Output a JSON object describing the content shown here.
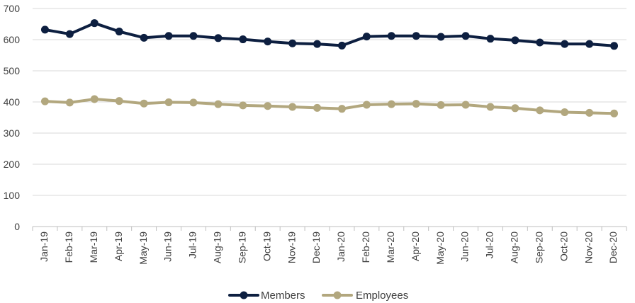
{
  "chart_data": {
    "type": "line",
    "title": "",
    "xlabel": "",
    "ylabel": "",
    "ylim": [
      0,
      700
    ],
    "yticks": [
      0,
      100,
      200,
      300,
      400,
      500,
      600,
      700
    ],
    "grid": "horizontal",
    "legend": "bottom-center",
    "categories": [
      "Jan-19",
      "Feb-19",
      "Mar-19",
      "Apr-19",
      "May-19",
      "Jun-19",
      "Jul-19",
      "Aug-19",
      "Sep-19",
      "Oct-19",
      "Nov-19",
      "Dec-19",
      "Jan-20",
      "Feb-20",
      "Mar-20",
      "Apr-20",
      "May-20",
      "Jun-20",
      "Jul-20",
      "Aug-20",
      "Sep-20",
      "Oct-20",
      "Nov-20",
      "Dec-20"
    ],
    "series": [
      {
        "name": "Members",
        "color": "#0d1f40",
        "values": [
          632,
          618,
          653,
          626,
          606,
          612,
          612,
          605,
          601,
          594,
          588,
          586,
          581,
          610,
          612,
          612,
          609,
          612,
          603,
          598,
          591,
          586,
          586,
          580
        ]
      },
      {
        "name": "Employees",
        "color": "#b2a77e",
        "values": [
          402,
          398,
          409,
          403,
          395,
          399,
          398,
          393,
          389,
          387,
          384,
          381,
          378,
          391,
          393,
          394,
          390,
          391,
          384,
          380,
          373,
          367,
          365,
          363
        ]
      }
    ]
  }
}
